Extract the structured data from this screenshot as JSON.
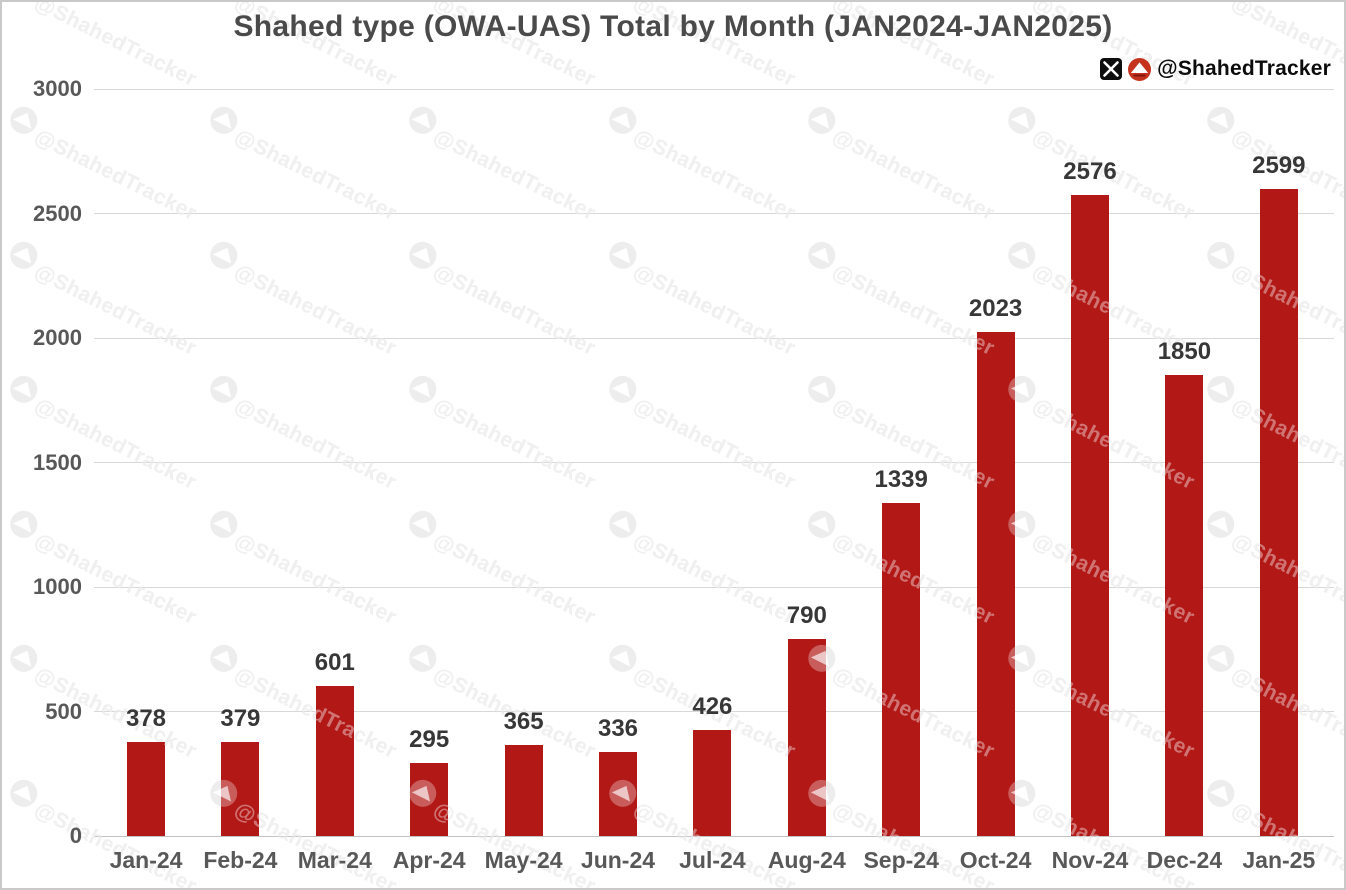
{
  "title": "Shahed type (OWA-UAS) Total by Month (JAN2024-JAN2025)",
  "attribution": {
    "handle": "@ShahedTracker",
    "icons": [
      "x-logo-icon",
      "shahed-drone-logo-icon"
    ]
  },
  "watermark": {
    "text": "@ShahedTracker",
    "icon": "shahed-drone-logo-icon"
  },
  "colors": {
    "bar": "#B11816",
    "grid": "#d8d8d8",
    "axis_text": "#585858",
    "value_text": "#373737",
    "title_text": "#4a4a4a",
    "logo_red": "#C5331F",
    "logo_dark_red": "#7e150f"
  },
  "chart_data": {
    "type": "bar",
    "title": "Shahed type (OWA-UAS) Total by Month (JAN2024-JAN2025)",
    "categories": [
      "Jan-24",
      "Feb-24",
      "Mar-24",
      "Apr-24",
      "May-24",
      "Jun-24",
      "Jul-24",
      "Aug-24",
      "Sep-24",
      "Oct-24",
      "Nov-24",
      "Dec-24",
      "Jan-25"
    ],
    "values": [
      378,
      379,
      601,
      295,
      365,
      336,
      426,
      790,
      1339,
      2023,
      2576,
      1850,
      2599
    ],
    "xlabel": "",
    "ylabel": "",
    "ylim": [
      0,
      3000
    ],
    "yticks": [
      0,
      500,
      1000,
      1500,
      2000,
      2500,
      3000
    ],
    "grid": true,
    "legend": false,
    "value_labels": true,
    "bar_color": "#B11816"
  }
}
